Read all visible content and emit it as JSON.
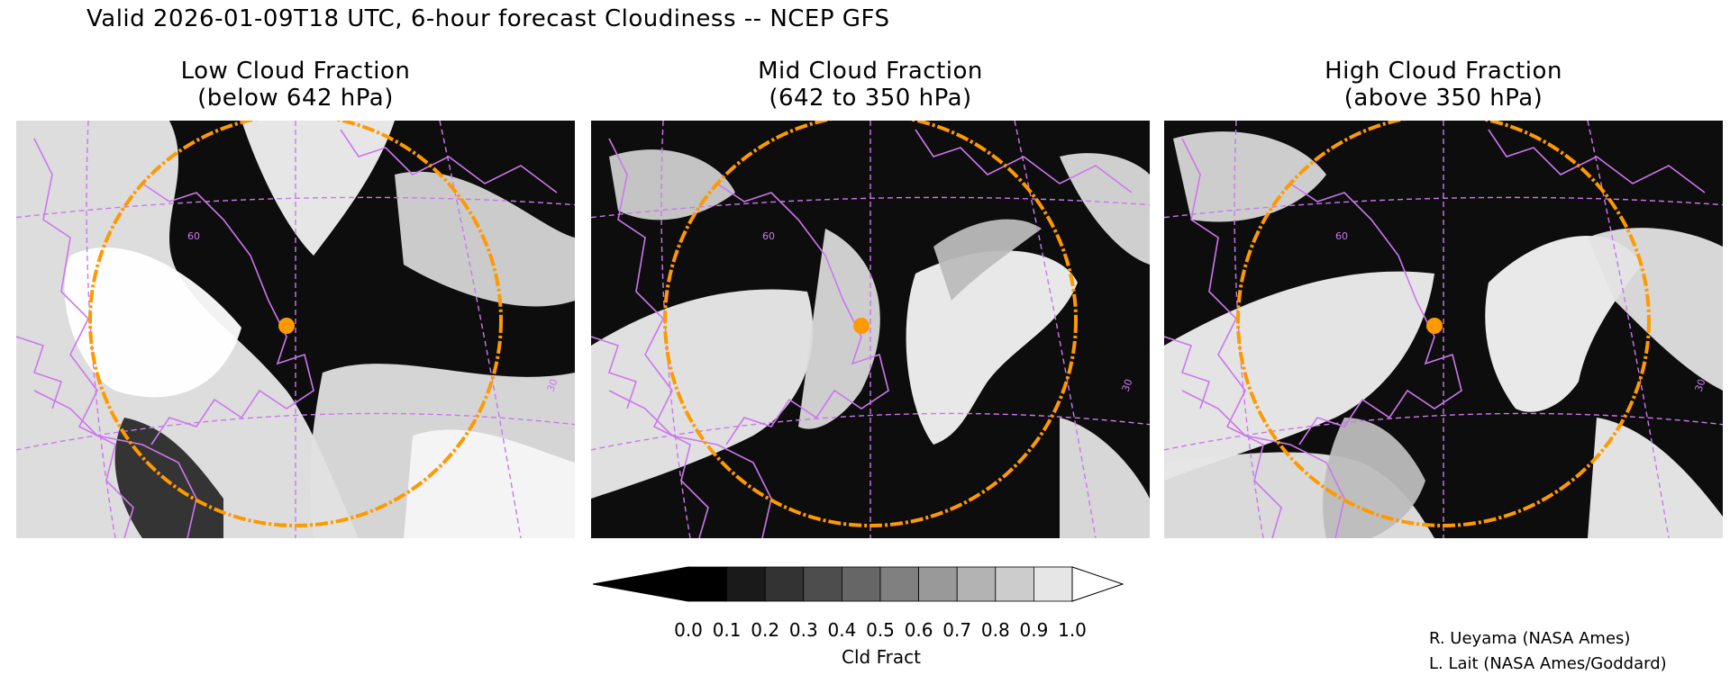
{
  "header": {
    "title": "Valid 2026-01-09T18 UTC, 6-hour forecast Cloudiness -- NCEP GFS"
  },
  "panels": [
    {
      "title_line1": "Low Cloud Fraction",
      "title_line2": "(below 642 hPa)"
    },
    {
      "title_line1": "Mid Cloud Fraction",
      "title_line2": "(642 to 350 hPa)"
    },
    {
      "title_line1": "High Cloud Fraction",
      "title_line2": "(above 350 hPa)"
    }
  ],
  "map_labels": {
    "lat_label": "60",
    "lon_label": "30"
  },
  "colorbar": {
    "ticks": [
      "0.0",
      "0.1",
      "0.2",
      "0.3",
      "0.4",
      "0.5",
      "0.6",
      "0.7",
      "0.8",
      "0.9",
      "1.0"
    ],
    "label": "Cld Fract",
    "colors": [
      "#000000",
      "#1a1a1a",
      "#333333",
      "#4d4d4d",
      "#666666",
      "#808080",
      "#999999",
      "#b3b3b3",
      "#cccccc",
      "#e6e6e6"
    ]
  },
  "credits": {
    "line1": "R. Ueyama (NASA Ames)",
    "line2": "L. Lait (NASA Ames/Goddard)"
  },
  "styles": {
    "coast_color": "#cc77ee",
    "range_ring_color": "#ff9900",
    "site_marker_color": "#ff9900"
  }
}
